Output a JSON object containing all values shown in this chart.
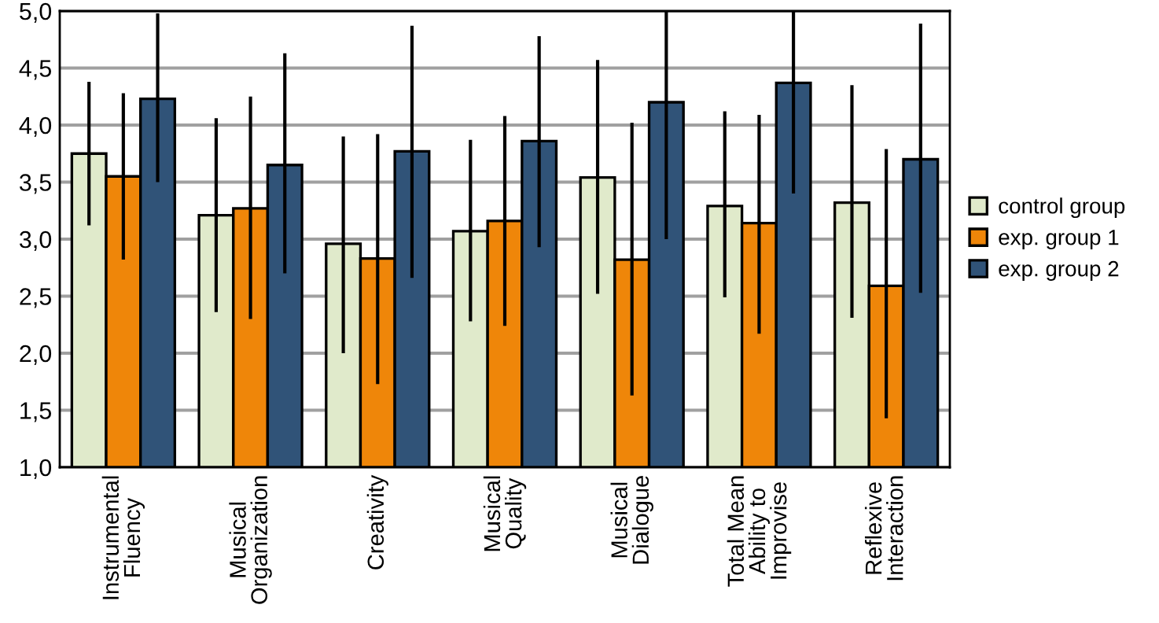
{
  "chart_data": {
    "type": "bar",
    "categories": [
      "Instrumental\nFluency",
      "Musical\nOrganization",
      "Creativity",
      "Musical\nQuality",
      "Musical\nDialogue",
      "Total Mean\nAbility to\nImprovise",
      "Reflexive\nInteraction"
    ],
    "series": [
      {
        "name": "control group",
        "color": "#e0eacb",
        "values": [
          3.75,
          3.21,
          2.96,
          3.07,
          3.54,
          3.29,
          3.32
        ],
        "errors": [
          [
            3.12,
            4.38
          ],
          [
            2.36,
            4.06
          ],
          [
            2.0,
            3.9
          ],
          [
            2.28,
            3.87
          ],
          [
            2.52,
            4.57
          ],
          [
            2.49,
            4.12
          ],
          [
            2.31,
            4.35
          ]
        ]
      },
      {
        "name": "exp. group 1",
        "color": "#ef8609",
        "values": [
          3.55,
          3.27,
          2.83,
          3.16,
          2.82,
          3.14,
          2.59
        ],
        "errors": [
          [
            2.82,
            4.28
          ],
          [
            2.3,
            4.25
          ],
          [
            1.73,
            3.92
          ],
          [
            2.24,
            4.08
          ],
          [
            1.63,
            4.02
          ],
          [
            2.17,
            4.09
          ],
          [
            1.43,
            3.79
          ]
        ]
      },
      {
        "name": "exp. group 2",
        "color": "#305378",
        "values": [
          4.23,
          3.65,
          3.77,
          3.86,
          4.2,
          4.37,
          3.7
        ],
        "errors": [
          [
            3.5,
            4.98
          ],
          [
            2.7,
            4.63
          ],
          [
            2.66,
            4.87
          ],
          [
            2.93,
            4.78
          ],
          [
            3.0,
            5.0
          ],
          [
            3.4,
            5.0
          ],
          [
            2.53,
            4.89
          ]
        ]
      }
    ],
    "ylim": [
      1.0,
      5.0
    ],
    "yticks": [
      {
        "value": 1.0,
        "label": "1,0"
      },
      {
        "value": 1.5,
        "label": "1,5"
      },
      {
        "value": 2.0,
        "label": "2,0"
      },
      {
        "value": 2.5,
        "label": "2,5"
      },
      {
        "value": 3.0,
        "label": "3,0"
      },
      {
        "value": 3.5,
        "label": "3,5"
      },
      {
        "value": 4.0,
        "label": "4,0"
      },
      {
        "value": 4.5,
        "label": "4,5"
      },
      {
        "value": 5.0,
        "label": "5,0"
      }
    ],
    "grid": "y",
    "legend": "right"
  }
}
